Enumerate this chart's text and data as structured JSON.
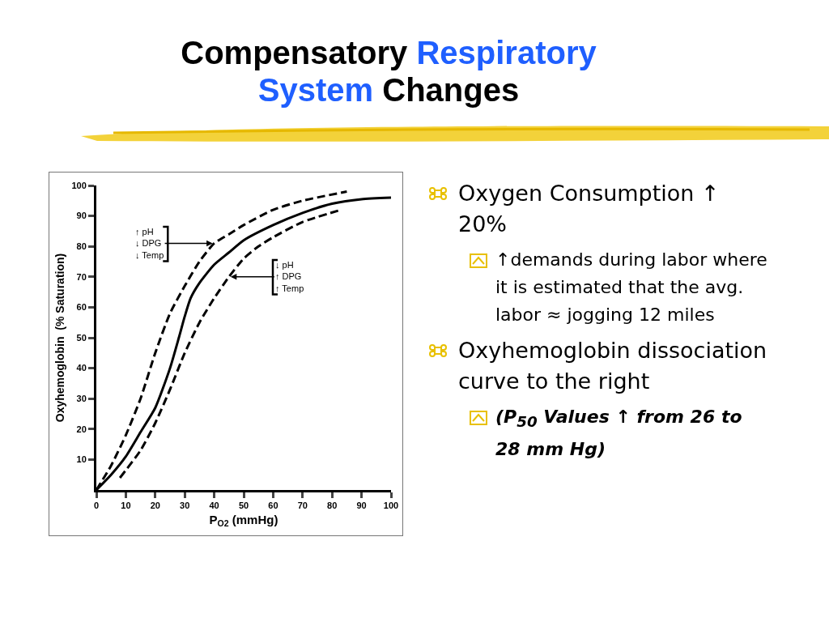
{
  "chart_data": {
    "type": "line",
    "title": "Compensatory Respiratory System Changes",
    "xlabel": "P$_{O2}$ (mmHg)",
    "ylabel": "Oxyhemoglobin  (% Saturation)",
    "xlim": [
      0,
      100
    ],
    "ylim": [
      0,
      100
    ],
    "xticks": [
      0,
      10,
      20,
      30,
      40,
      50,
      60,
      70,
      80,
      90,
      100
    ],
    "yticks": [
      10,
      20,
      30,
      40,
      50,
      60,
      70,
      80,
      90,
      100
    ],
    "grid": false,
    "marker": "none",
    "series": [
      {
        "color": "#000000",
        "line_style": "solid",
        "x": [
          0,
          5,
          10,
          15,
          20,
          25,
          28,
          30,
          32,
          35,
          40,
          45,
          50,
          60,
          70,
          80,
          90,
          100
        ],
        "values": [
          0,
          5,
          11,
          19,
          27,
          40,
          50,
          57,
          63,
          68,
          74,
          78,
          82,
          87,
          91,
          94,
          95.5,
          96
        ]
      },
      {
        "color": "#000000",
        "line_style": "dashed",
        "x": [
          0,
          5,
          10,
          15,
          20,
          25,
          30,
          35,
          40,
          45,
          50,
          60,
          70,
          85
        ],
        "values": [
          0,
          8,
          18,
          30,
          45,
          58,
          67,
          75,
          81,
          84,
          87,
          92,
          95,
          98
        ]
      },
      {
        "color": "#000000",
        "line_style": "dashed",
        "x": [
          8,
          15,
          20,
          25,
          30,
          35,
          40,
          45,
          50,
          55,
          60,
          70,
          83
        ],
        "values": [
          4,
          13,
          22,
          33,
          45,
          55,
          63,
          70,
          76,
          80,
          83,
          88,
          92
        ]
      }
    ],
    "annotations": [
      {
        "text": "↑ pH\n↓ DPG\n↓ Temp",
        "x": 40,
        "y": 81
      },
      {
        "text": "↓ pH\n↑ DPG\n↑ Temp",
        "x": 45,
        "y": 70
      },
      "Oxygen Consumption ↑ 20%",
      "↑demands during labor where it is estimated that the avg. labor ≈ jogging 12 miles",
      "Oxyhemoglobin dissociation curve to the right",
      "(P$_{50}$ Values ↑ from 26 to 28 mm Hg)"
    ]
  }
}
